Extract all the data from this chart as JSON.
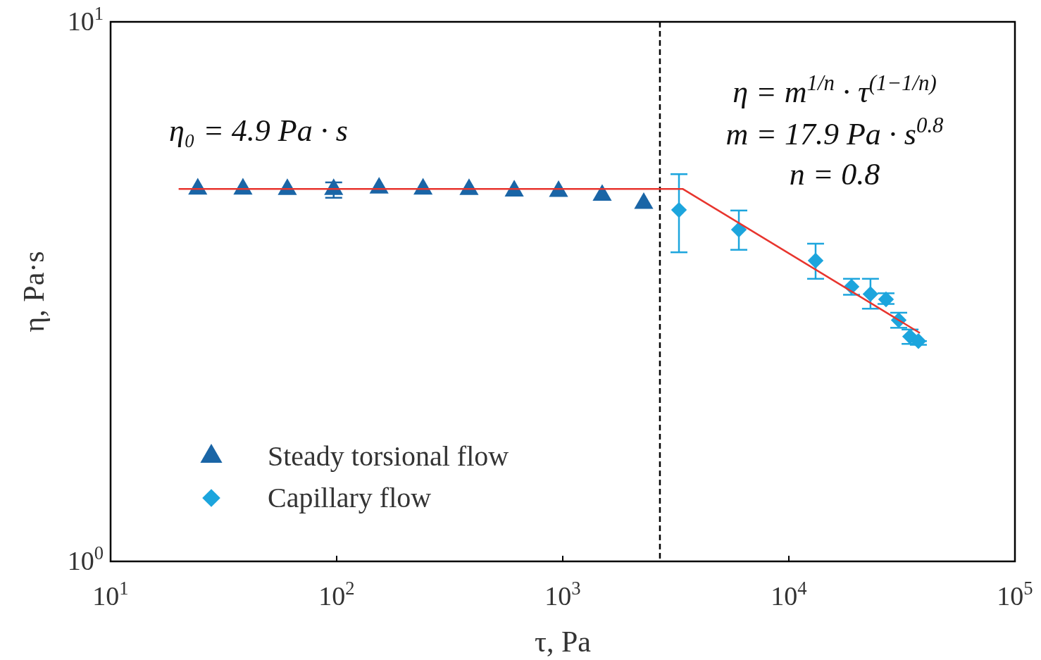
{
  "chart_data": {
    "type": "scatter",
    "xlabel": "τ, Pa",
    "ylabel": "η, Pa·s",
    "log": "xy",
    "xlim": [
      10,
      100000
    ],
    "ylim": [
      1,
      10
    ],
    "xticks": [
      {
        "value": 10,
        "label": "10$^{1}$"
      },
      {
        "value": 100,
        "label": "10$^{2}$"
      },
      {
        "value": 1000,
        "label": "10$^{3}$"
      },
      {
        "value": 10000,
        "label": "10$^{4}$"
      },
      {
        "value": 100000,
        "label": "10$^{5}$"
      }
    ],
    "yticks": [
      {
        "value": 1,
        "label": "10$^{0}$"
      },
      {
        "value": 10,
        "label": "10$^{1}$"
      }
    ],
    "grid": false,
    "legend": "bottom left",
    "series": [
      {
        "name": "Steady torsional flow",
        "marker": "triangle",
        "color": "#1a65a6",
        "x": [
          24.3,
          38.5,
          60.5,
          97,
          154,
          241,
          385,
          610,
          958,
          1494,
          2281
        ],
        "values": [
          4.9,
          4.9,
          4.89,
          4.89,
          4.92,
          4.9,
          4.89,
          4.86,
          4.85,
          4.77,
          4.61
        ],
        "errors": [
          null,
          null,
          null,
          [
            4.72,
            5.04
          ],
          null,
          null,
          null,
          null,
          null,
          null,
          null
        ]
      },
      {
        "name": "Capillary flow",
        "marker": "diamond",
        "color": "#1ca5dd",
        "x": [
          3266,
          6010,
          13130,
          18930,
          22960,
          26900,
          30620,
          34360,
          37410
        ],
        "values": [
          4.48,
          4.12,
          3.61,
          3.23,
          3.13,
          3.06,
          2.8,
          2.61,
          2.56
        ],
        "errors": [
          [
            3.74,
            5.22
          ],
          [
            3.78,
            4.47
          ],
          [
            3.34,
            3.88
          ],
          [
            3.12,
            3.34
          ],
          [
            2.94,
            3.34
          ],
          [
            3.0,
            3.14
          ],
          [
            2.71,
            2.89
          ],
          [
            2.53,
            2.69
          ],
          [
            2.52,
            2.56
          ]
        ]
      },
      {
        "type": "line",
        "marker": "none",
        "color": "#e8352e",
        "x": [
          20,
          3400,
          38000
        ],
        "values": [
          4.9,
          4.9,
          2.65
        ]
      }
    ],
    "ref_lines": [
      {
        "axis": "x",
        "value": 2690,
        "color": "#000000",
        "line_style": "dashed"
      }
    ],
    "annotations": [
      "η₀ = 4.9 Pa · s",
      "η = m$^{1/n}$ · τ$^{(1−1/n)}$",
      "m = 17.9   Pa · s$^{0.8}$",
      "n = 0.8"
    ]
  }
}
